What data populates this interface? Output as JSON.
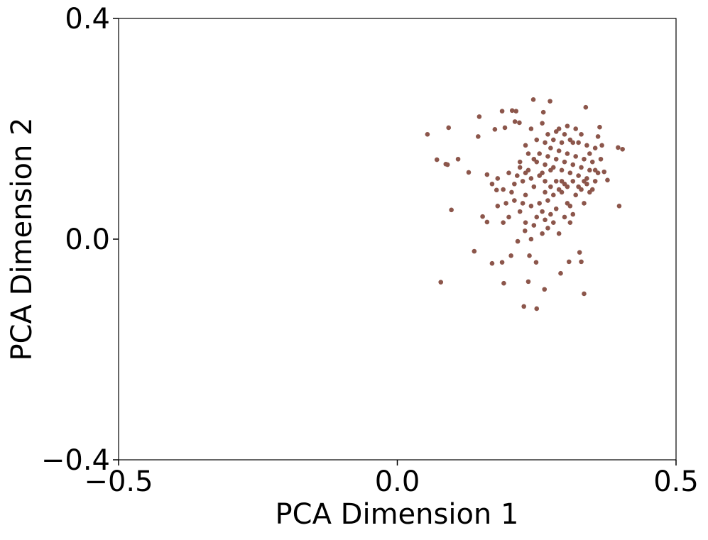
{
  "chart_data": {
    "type": "scatter",
    "xlabel": "PCA Dimension 1",
    "ylabel": "PCA Dimension 2",
    "color": "#8c564b",
    "xlim": [
      -0.5,
      0.5
    ],
    "ylim": [
      -0.4,
      0.4
    ],
    "xticks": [
      {
        "value": -0.5,
        "label": "−0.5"
      },
      {
        "value": 0,
        "label": "0.0"
      },
      0.5
    ],
    "yticks": [
      {
        "value": -0.4,
        "label": "−0.4"
      },
      {
        "value": 0,
        "label": "0.0"
      },
      0.4
    ],
    "x": [
      0.054,
      0.092,
      0.071,
      0.087,
      0.09,
      0.109,
      0.097,
      0.078,
      0.128,
      0.147,
      0.138,
      0.145,
      0.153,
      0.161,
      0.161,
      0.17,
      0.175,
      0.178,
      0.188,
      0.191,
      0.188,
      0.206,
      0.211,
      0.213,
      0.219,
      0.193,
      0.227,
      0.235,
      0.244,
      0.25,
      0.262,
      0.274,
      0.264,
      0.293,
      0.335,
      0.338,
      0.396,
      0.404,
      0.398,
      0.377,
      0.371,
      0.363,
      0.36,
      0.367,
      0.33,
      0.327,
      0.308,
      0.249,
      0.237,
      0.204,
      0.216,
      0.229,
      0.2,
      0.21,
      0.22,
      0.23,
      0.24,
      0.25,
      0.26,
      0.27,
      0.28,
      0.29,
      0.3,
      0.31,
      0.32,
      0.33,
      0.34,
      0.35,
      0.36,
      0.3,
      0.29,
      0.28,
      0.27,
      0.26,
      0.25,
      0.24,
      0.23,
      0.22,
      0.21,
      0.2,
      0.19,
      0.18,
      0.17,
      0.18,
      0.19,
      0.27,
      0.28,
      0.29,
      0.3,
      0.31,
      0.32,
      0.33,
      0.34,
      0.35,
      0.31,
      0.26,
      0.24,
      0.28,
      0.29,
      0.3,
      0.31,
      0.32,
      0.33,
      0.34,
      0.27,
      0.26,
      0.25,
      0.24,
      0.23,
      0.22,
      0.23,
      0.255,
      0.265,
      0.275,
      0.285,
      0.295,
      0.305,
      0.315,
      0.325,
      0.335,
      0.345,
      0.355,
      0.285,
      0.275,
      0.265,
      0.295,
      0.305,
      0.315,
      0.325,
      0.245,
      0.235,
      0.215,
      0.205,
      0.195,
      0.225,
      0.255,
      0.285,
      0.305,
      0.315,
      0.265,
      0.245,
      0.275,
      0.335,
      0.345,
      0.355,
      0.365,
      0.355,
      0.345,
      0.315,
      0.295,
      0.275,
      0.265,
      0.285,
      0.305,
      0.325,
      0.245,
      0.235,
      0.225,
      0.255,
      0.265,
      0.295,
      0.335
    ],
    "y": [
      0.19,
      0.202,
      0.144,
      0.136,
      0.135,
      0.145,
      0.053,
      -0.078,
      0.121,
      0.222,
      -0.022,
      0.186,
      0.041,
      0.031,
      0.117,
      -0.044,
      0.199,
      0.089,
      0.232,
      -0.08,
      -0.042,
      0.233,
      0.213,
      0.232,
      0.211,
      0.202,
      -0.122,
      -0.077,
      0.253,
      -0.126,
      0.23,
      0.25,
      -0.091,
      -0.062,
      -0.099,
      0.239,
      0.166,
      0.163,
      0.06,
      0.107,
      0.122,
      0.203,
      0.186,
      0.17,
      -0.041,
      -0.024,
      -0.041,
      -0.042,
      -0.03,
      -0.03,
      -0.004,
      0.015,
      0.12,
      0.1,
      0.13,
      0.08,
      0.11,
      0.14,
      0.12,
      0.15,
      0.13,
      0.16,
      0.14,
      0.12,
      0.15,
      0.13,
      0.11,
      0.14,
      0.12,
      0.1,
      0.09,
      0.08,
      0.07,
      0.05,
      0.04,
      0.06,
      0.03,
      0.05,
      0.07,
      0.04,
      0.09,
      0.11,
      0.1,
      0.06,
      0.03,
      0.02,
      0.03,
      0.01,
      0.04,
      0.06,
      0.08,
      0.09,
      0.1,
      0.09,
      0.03,
      0.01,
      0,
      0.18,
      0.2,
      0.19,
      0.18,
      0.2,
      0.19,
      0.17,
      0.19,
      0.21,
      0.18,
      0.2,
      0.17,
      0.14,
      0.12,
      0.155,
      0.135,
      0.125,
      0.145,
      0.125,
      0.155,
      0.135,
      0.115,
      0.145,
      0.125,
      0.105,
      0.105,
      0.095,
      0.085,
      0.085,
      0.095,
      0.105,
      0.095,
      0.095,
      0.125,
      0.115,
      0.085,
      0.065,
      0.065,
      0.065,
      0.055,
      0.065,
      0.045,
      0.035,
      0.025,
      0.045,
      0.065,
      0.085,
      0.125,
      0.145,
      0.165,
      0.155,
      0.175,
      0.175,
      0.165,
      0.175,
      0.195,
      0.205,
      0.175,
      0.145,
      0.155,
      0.105,
      0.115,
      0.105,
      0.105,
      0.105
    ]
  }
}
